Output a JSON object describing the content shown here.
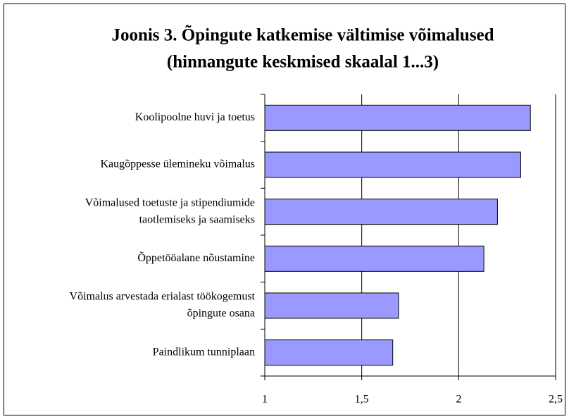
{
  "chart_data": {
    "type": "bar",
    "orientation": "horizontal",
    "title": [
      "Joonis 3. Õpingute katkemise vältimise võimalused",
      "(hinnangute keskmised skaalal 1...3)"
    ],
    "categories": [
      [
        "Koolipoolne huvi ja toetus"
      ],
      [
        "Kaugõppesse ülemineku võimalus"
      ],
      [
        "Võimalused toetuste ja stipendiumide",
        "taotlemiseks ja saamiseks"
      ],
      [
        "Õppetööalane nõustamine"
      ],
      [
        "Võimalus arvestada erialast töökogemust",
        "õpingute osana"
      ],
      [
        "Paindlikum tunniplaan"
      ]
    ],
    "values": [
      2.37,
      2.32,
      2.2,
      2.13,
      1.69,
      1.66
    ],
    "color": "#9999ff",
    "xlim": [
      1,
      2.5
    ],
    "xticks": [
      1,
      {
        "value": 1.5,
        "label": "1,5"
      },
      2,
      {
        "value": 2.5,
        "label": "2,5"
      }
    ],
    "grid": true
  }
}
